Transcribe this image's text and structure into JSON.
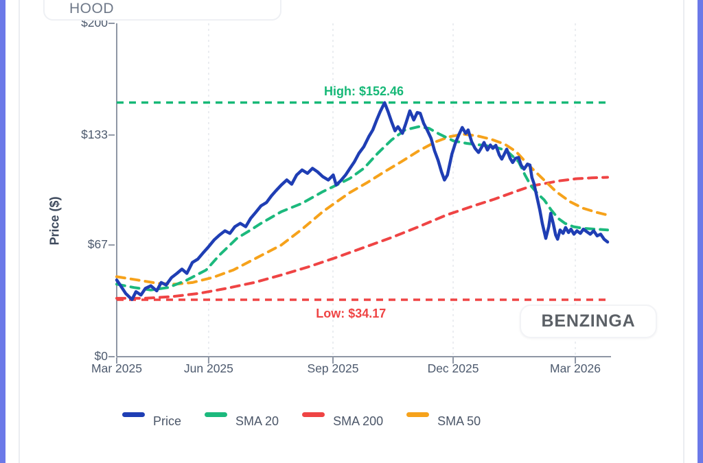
{
  "header": {
    "symbol": "HOOD"
  },
  "watermark": {
    "text": "BENZINGA"
  },
  "ui_colors": {
    "edge_strip": "#6b79e8",
    "card_border": "#ebedf1",
    "axis": "#8e96a4",
    "tick_text": "#4d5a6e",
    "grid": "#e4e7ec"
  },
  "chart_data": {
    "type": "line",
    "title": "",
    "ylabel": "Price ($)",
    "ylim": [
      0,
      200
    ],
    "grid": "vertical-dashed",
    "y_ticks": [
      {
        "label": "$0",
        "value": 0
      },
      {
        "label": "$67",
        "value": 67
      },
      {
        "label": "$133",
        "value": 133
      },
      {
        "label": "$200",
        "value": 200
      }
    ],
    "x_ticks": [
      {
        "label": "Mar 2025",
        "f": 0.0
      },
      {
        "label": "Jun 2025",
        "f": 0.186
      },
      {
        "label": "Sep 2025",
        "f": 0.4375
      },
      {
        "label": "Dec 2025",
        "f": 0.6806
      },
      {
        "label": "Mar 2026",
        "f": 0.9278
      }
    ],
    "high_marker": {
      "label": "High: $152.46",
      "value": 152.46,
      "color": "#16b877"
    },
    "low_marker": {
      "label": "Low: $34.17",
      "value": 34.17,
      "color": "#ef4444"
    },
    "series": [
      {
        "name": "SMA 200",
        "color": "#ef4444",
        "style": "dashed",
        "width": 4,
        "points": [
          [
            0,
            35
          ],
          [
            0.056,
            35
          ],
          [
            0.111,
            36
          ],
          [
            0.167,
            38
          ],
          [
            0.222,
            41
          ],
          [
            0.278,
            44.5
          ],
          [
            0.333,
            49
          ],
          [
            0.389,
            54
          ],
          [
            0.444,
            59.5
          ],
          [
            0.5,
            65.5
          ],
          [
            0.556,
            71.5
          ],
          [
            0.611,
            78
          ],
          [
            0.667,
            85
          ],
          [
            0.722,
            90.5
          ],
          [
            0.764,
            94.5
          ],
          [
            0.806,
            99
          ],
          [
            0.84,
            102.5
          ],
          [
            0.868,
            104
          ],
          [
            0.896,
            105.5
          ],
          [
            0.931,
            106.8
          ],
          [
            0.961,
            107.3
          ],
          [
            0.993,
            107.6
          ]
        ]
      },
      {
        "name": "SMA 50",
        "color": "#f6a21b",
        "style": "dashed",
        "width": 4,
        "points": [
          [
            0,
            48
          ],
          [
            0.042,
            46
          ],
          [
            0.083,
            44
          ],
          [
            0.118,
            43.5
          ],
          [
            0.153,
            44.5
          ],
          [
            0.194,
            47.5
          ],
          [
            0.236,
            52
          ],
          [
            0.278,
            58.5
          ],
          [
            0.333,
            67
          ],
          [
            0.375,
            76.5
          ],
          [
            0.417,
            87
          ],
          [
            0.438,
            91.5
          ],
          [
            0.472,
            98.5
          ],
          [
            0.507,
            104.5
          ],
          [
            0.542,
            111
          ],
          [
            0.576,
            117
          ],
          [
            0.611,
            123.5
          ],
          [
            0.646,
            129
          ],
          [
            0.674,
            132
          ],
          [
            0.701,
            133.5
          ],
          [
            0.729,
            132.5
          ],
          [
            0.757,
            130.5
          ],
          [
            0.785,
            127.5
          ],
          [
            0.808,
            123
          ],
          [
            0.833,
            115
          ],
          [
            0.861,
            107
          ],
          [
            0.889,
            99
          ],
          [
            0.917,
            93
          ],
          [
            0.944,
            89
          ],
          [
            0.972,
            86.5
          ],
          [
            0.993,
            85
          ]
        ]
      },
      {
        "name": "SMA 20",
        "color": "#1cb97d",
        "style": "dashed",
        "width": 4,
        "points": [
          [
            0,
            43.5
          ],
          [
            0.035,
            41.5
          ],
          [
            0.069,
            40
          ],
          [
            0.104,
            41.5
          ],
          [
            0.139,
            45.5
          ],
          [
            0.181,
            52
          ],
          [
            0.208,
            61
          ],
          [
            0.243,
            71
          ],
          [
            0.271,
            76
          ],
          [
            0.292,
            80
          ],
          [
            0.333,
            87
          ],
          [
            0.375,
            92
          ],
          [
            0.417,
            99
          ],
          [
            0.438,
            102
          ],
          [
            0.472,
            107
          ],
          [
            0.5,
            113
          ],
          [
            0.528,
            122
          ],
          [
            0.556,
            130
          ],
          [
            0.583,
            136
          ],
          [
            0.611,
            138
          ],
          [
            0.632,
            137
          ],
          [
            0.653,
            133.5
          ],
          [
            0.681,
            129.5
          ],
          [
            0.708,
            128
          ],
          [
            0.736,
            127
          ],
          [
            0.764,
            126
          ],
          [
            0.789,
            123.5
          ],
          [
            0.813,
            117
          ],
          [
            0.826,
            109
          ],
          [
            0.838,
            102.5
          ],
          [
            0.851,
            98
          ],
          [
            0.865,
            94
          ],
          [
            0.879,
            88
          ],
          [
            0.893,
            83
          ],
          [
            0.907,
            80
          ],
          [
            0.924,
            78
          ],
          [
            0.944,
            77
          ],
          [
            0.969,
            76.5
          ],
          [
            0.993,
            76
          ]
        ]
      },
      {
        "name": "Price",
        "color": "#1f3eb4",
        "style": "solid",
        "width": 4.5,
        "points": [
          [
            0,
            46
          ],
          [
            0.008,
            42.5
          ],
          [
            0.018,
            38
          ],
          [
            0.031,
            34.3
          ],
          [
            0.039,
            39
          ],
          [
            0.049,
            37
          ],
          [
            0.058,
            41
          ],
          [
            0.069,
            42.5
          ],
          [
            0.081,
            39.5
          ],
          [
            0.09,
            44.5
          ],
          [
            0.1,
            43
          ],
          [
            0.111,
            47.5
          ],
          [
            0.122,
            50
          ],
          [
            0.132,
            52.5
          ],
          [
            0.142,
            50
          ],
          [
            0.153,
            56.5
          ],
          [
            0.164,
            58.5
          ],
          [
            0.174,
            62
          ],
          [
            0.186,
            66
          ],
          [
            0.197,
            70
          ],
          [
            0.208,
            73
          ],
          [
            0.219,
            75.5
          ],
          [
            0.229,
            74
          ],
          [
            0.239,
            78
          ],
          [
            0.25,
            80
          ],
          [
            0.261,
            78
          ],
          [
            0.271,
            83
          ],
          [
            0.281,
            86.5
          ],
          [
            0.292,
            90.5
          ],
          [
            0.303,
            92.5
          ],
          [
            0.313,
            96.5
          ],
          [
            0.322,
            99.5
          ],
          [
            0.333,
            103
          ],
          [
            0.344,
            106
          ],
          [
            0.354,
            103.5
          ],
          [
            0.364,
            109
          ],
          [
            0.375,
            112
          ],
          [
            0.386,
            110
          ],
          [
            0.396,
            113
          ],
          [
            0.406,
            111
          ],
          [
            0.417,
            108
          ],
          [
            0.428,
            106
          ],
          [
            0.438,
            109
          ],
          [
            0.444,
            103
          ],
          [
            0.453,
            105.5
          ],
          [
            0.463,
            109
          ],
          [
            0.472,
            113
          ],
          [
            0.481,
            117
          ],
          [
            0.49,
            122
          ],
          [
            0.5,
            126
          ],
          [
            0.51,
            132
          ],
          [
            0.518,
            136
          ],
          [
            0.526,
            142
          ],
          [
            0.533,
            147
          ],
          [
            0.542,
            152.4
          ],
          [
            0.549,
            147
          ],
          [
            0.556,
            141
          ],
          [
            0.563,
            135.5
          ],
          [
            0.569,
            138
          ],
          [
            0.578,
            134
          ],
          [
            0.585,
            140
          ],
          [
            0.593,
            147.5
          ],
          [
            0.601,
            142
          ],
          [
            0.608,
            146.5
          ],
          [
            0.614,
            146
          ],
          [
            0.621,
            140
          ],
          [
            0.628,
            136
          ],
          [
            0.636,
            131
          ],
          [
            0.643,
            123.5
          ],
          [
            0.65,
            118
          ],
          [
            0.657,
            111
          ],
          [
            0.663,
            106
          ],
          [
            0.669,
            109
          ],
          [
            0.678,
            121.5
          ],
          [
            0.685,
            128
          ],
          [
            0.692,
            133
          ],
          [
            0.699,
            137.5
          ],
          [
            0.706,
            134
          ],
          [
            0.711,
            136
          ],
          [
            0.718,
            129
          ],
          [
            0.725,
            125
          ],
          [
            0.732,
            122.5
          ],
          [
            0.739,
            126
          ],
          [
            0.743,
            128.5
          ],
          [
            0.75,
            124
          ],
          [
            0.756,
            127
          ],
          [
            0.761,
            125
          ],
          [
            0.767,
            126.8
          ],
          [
            0.774,
            121
          ],
          [
            0.779,
            118.5
          ],
          [
            0.785,
            122
          ],
          [
            0.789,
            124.5
          ],
          [
            0.796,
            119
          ],
          [
            0.801,
            116.5
          ],
          [
            0.807,
            119
          ],
          [
            0.813,
            119.5
          ],
          [
            0.818,
            115
          ],
          [
            0.824,
            112.5
          ],
          [
            0.831,
            115.5
          ],
          [
            0.836,
            115
          ],
          [
            0.84,
            107.5
          ],
          [
            0.844,
            104
          ],
          [
            0.85,
            96
          ],
          [
            0.856,
            88
          ],
          [
            0.861,
            80
          ],
          [
            0.868,
            71
          ],
          [
            0.874,
            78
          ],
          [
            0.878,
            86
          ],
          [
            0.883,
            80
          ],
          [
            0.888,
            73
          ],
          [
            0.892,
            70.5
          ],
          [
            0.897,
            76
          ],
          [
            0.903,
            74
          ],
          [
            0.908,
            77.5
          ],
          [
            0.914,
            74.5
          ],
          [
            0.919,
            76.5
          ],
          [
            0.925,
            73.5
          ],
          [
            0.931,
            75.5
          ],
          [
            0.938,
            74
          ],
          [
            0.944,
            76.5
          ],
          [
            0.951,
            75
          ],
          [
            0.958,
            73.5
          ],
          [
            0.965,
            75.5
          ],
          [
            0.972,
            72.5
          ],
          [
            0.979,
            73.5
          ],
          [
            0.986,
            70.5
          ],
          [
            0.993,
            68.8
          ]
        ]
      }
    ],
    "legend": {
      "position": "bottom",
      "items": [
        {
          "label": "Price",
          "color": "#1f3eb4"
        },
        {
          "label": "SMA 20",
          "color": "#1cb97d"
        },
        {
          "label": "SMA 200",
          "color": "#ef4444"
        },
        {
          "label": "SMA 50",
          "color": "#f6a21b"
        }
      ]
    }
  }
}
